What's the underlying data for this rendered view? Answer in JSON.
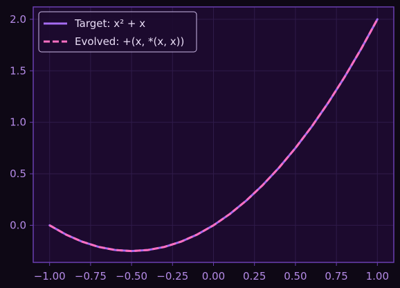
{
  "chart_data": {
    "type": "line",
    "xlim": [
      -1.1,
      1.1
    ],
    "ylim": [
      -0.36,
      2.12
    ],
    "x_ticks": [
      -1.0,
      -0.75,
      -0.5,
      -0.25,
      0.0,
      0.25,
      0.5,
      0.75,
      1.0
    ],
    "x_tick_labels": [
      "−1.00",
      "−0.75",
      "−0.50",
      "−0.25",
      "0.00",
      "0.25",
      "0.50",
      "0.75",
      "1.00"
    ],
    "y_ticks": [
      0.0,
      0.5,
      1.0,
      1.5,
      2.0
    ],
    "y_tick_labels": [
      "0.0",
      "0.5",
      "1.0",
      "1.5",
      "2.0"
    ],
    "grid": true,
    "legend_position": "top-left",
    "x": [
      -1.0,
      -0.9,
      -0.8,
      -0.7,
      -0.6,
      -0.5,
      -0.4,
      -0.3,
      -0.2,
      -0.1,
      0.0,
      0.1,
      0.2,
      0.3,
      0.4,
      0.5,
      0.6,
      0.7,
      0.8,
      0.9,
      1.0
    ],
    "series": [
      {
        "name": "Target: x² + x",
        "style": "solid",
        "color": "#a66cf2",
        "values": [
          0.0,
          -0.09,
          -0.16,
          -0.21,
          -0.24,
          -0.25,
          -0.24,
          -0.21,
          -0.16,
          -0.09,
          0.0,
          0.11,
          0.24,
          0.39,
          0.56,
          0.75,
          0.96,
          1.19,
          1.44,
          1.71,
          2.0
        ]
      },
      {
        "name": "Evolved: +(x, *(x, x))",
        "style": "dashed",
        "color": "#ff6fc2",
        "values": [
          0.0,
          -0.09,
          -0.16,
          -0.21,
          -0.24,
          -0.25,
          -0.24,
          -0.21,
          -0.16,
          -0.09,
          0.0,
          0.11,
          0.24,
          0.39,
          0.56,
          0.75,
          0.96,
          1.19,
          1.44,
          1.71,
          2.0
        ]
      }
    ],
    "colors": {
      "page_background": "#0e0815",
      "plot_background": "#1c0a2e",
      "axes_border": "#6a3fb0",
      "grid": "#2f1b4a",
      "tick_text": "#b48ae6",
      "legend_background": "#1c0a2e",
      "legend_border": "#cdbbe8",
      "legend_text": "#e8dcf5"
    }
  }
}
